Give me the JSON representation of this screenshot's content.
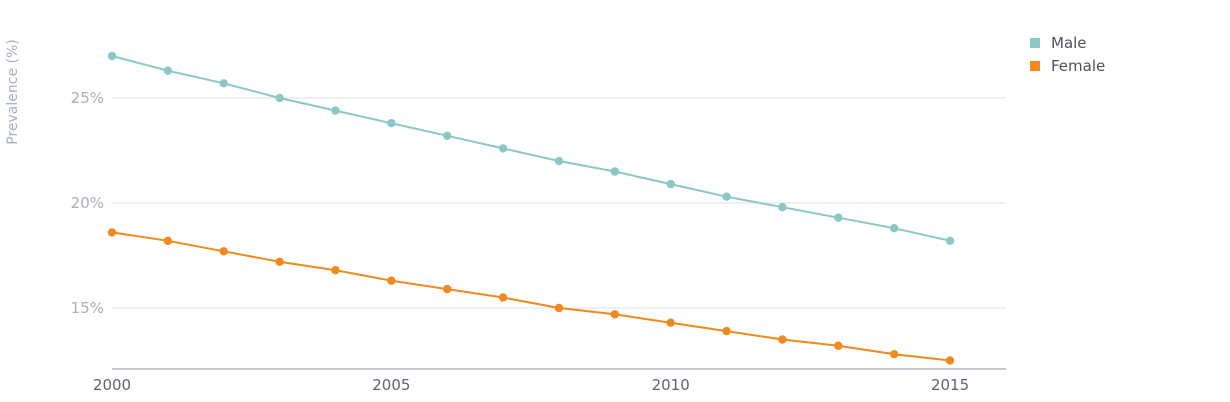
{
  "chart_data": {
    "type": "line",
    "ylabel": "Prevalence (%)",
    "x": [
      2000,
      2001,
      2002,
      2003,
      2004,
      2005,
      2006,
      2007,
      2008,
      2009,
      2010,
      2011,
      2012,
      2013,
      2014,
      2015
    ],
    "xticks": [
      2000,
      2005,
      2010,
      2015
    ],
    "xtick_labels": [
      "2000",
      "2005",
      "2010",
      "2015"
    ],
    "xlim": [
      2000,
      2016
    ],
    "yticks": [
      15,
      20,
      25
    ],
    "ytick_labels": [
      "15%",
      "20%",
      "25%"
    ],
    "ylim": [
      12.0,
      28.5
    ],
    "grid": true,
    "legend": "top-right",
    "series": [
      {
        "name": "Male",
        "color": "#8ac7c6",
        "values": [
          27.0,
          26.3,
          25.7,
          25.0,
          24.4,
          23.8,
          23.2,
          22.6,
          22.0,
          21.5,
          20.9,
          20.3,
          19.8,
          19.3,
          18.8,
          18.2
        ]
      },
      {
        "name": "Female",
        "color": "#f2891c",
        "values": [
          18.6,
          18.2,
          17.7,
          17.2,
          16.8,
          16.3,
          15.9,
          15.5,
          15.0,
          14.7,
          14.3,
          13.9,
          13.5,
          13.2,
          12.8,
          12.5
        ]
      }
    ]
  }
}
